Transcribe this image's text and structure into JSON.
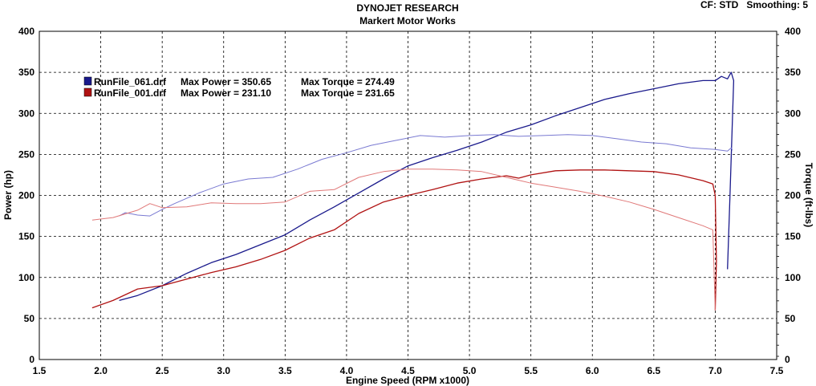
{
  "header": {
    "title": "DYNOJET RESEARCH",
    "subtitle": "Markert Motor Works",
    "settings": "CF: STD   Smoothing: 5"
  },
  "colors": {
    "blue_power": "#1a1a8c",
    "blue_torque": "#7a7ad2",
    "red_power": "#b01212",
    "red_torque": "#e07878"
  },
  "chart_data": {
    "type": "line",
    "xlabel": "Engine Speed (RPM x1000)",
    "ylabel_left": "Power (hp)",
    "ylabel_right": "Torque (ft-lbs)",
    "xlim": [
      1.5,
      7.5
    ],
    "ylim": [
      0,
      400
    ],
    "x_ticks": [
      "1.5",
      "2.0",
      "2.5",
      "3.0",
      "3.5",
      "4.0",
      "4.5",
      "5.0",
      "5.5",
      "6.0",
      "6.5",
      "7.0",
      "7.5"
    ],
    "y_ticks": [
      "0",
      "50",
      "100",
      "150",
      "200",
      "250",
      "300",
      "350",
      "400"
    ],
    "grid": true,
    "legend": [
      {
        "run": "RunFile_061.drf",
        "power": "Max Power = 350.65",
        "torque": "Max Torque = 274.49"
      },
      {
        "run": "RunFile_001.drf",
        "power": "Max Power = 231.10",
        "torque": "Max Torque = 231.65"
      }
    ],
    "series": [
      {
        "name": "RunFile_061.drf Power",
        "color": "#1a1a8c",
        "x": [
          2.15,
          2.3,
          2.5,
          2.7,
          2.9,
          3.1,
          3.3,
          3.5,
          3.7,
          3.9,
          4.1,
          4.3,
          4.5,
          4.7,
          4.9,
          5.1,
          5.3,
          5.5,
          5.7,
          5.9,
          6.1,
          6.3,
          6.5,
          6.7,
          6.9,
          7.0,
          7.05,
          7.1,
          7.13,
          7.15,
          7.12,
          7.1
        ],
        "y": [
          72,
          78,
          90,
          105,
          118,
          128,
          140,
          152,
          170,
          186,
          203,
          220,
          236,
          246,
          255,
          265,
          277,
          286,
          297,
          307,
          317,
          324,
          330,
          336,
          340,
          340,
          345,
          342,
          350,
          340,
          200,
          110
        ]
      },
      {
        "name": "RunFile_061.drf Torque",
        "color": "#7a7ad2",
        "x": [
          2.15,
          2.2,
          2.3,
          2.4,
          2.5,
          2.6,
          2.8,
          3.0,
          3.2,
          3.4,
          3.6,
          3.8,
          4.0,
          4.2,
          4.4,
          4.6,
          4.8,
          5.0,
          5.2,
          5.4,
          5.6,
          5.8,
          6.0,
          6.2,
          6.4,
          6.6,
          6.8,
          7.0,
          7.1,
          7.13,
          7.14
        ],
        "y": [
          175,
          179,
          176,
          175,
          183,
          190,
          203,
          214,
          220,
          222,
          232,
          244,
          252,
          261,
          267,
          273,
          271,
          273,
          274,
          272,
          273,
          274,
          273,
          269,
          265,
          263,
          258,
          256,
          254,
          258,
          255
        ]
      },
      {
        "name": "RunFile_001.drf Power",
        "color": "#b01212",
        "x": [
          1.93,
          2.1,
          2.3,
          2.5,
          2.7,
          2.9,
          3.1,
          3.3,
          3.5,
          3.7,
          3.9,
          4.1,
          4.3,
          4.5,
          4.7,
          4.9,
          5.1,
          5.3,
          5.4,
          5.5,
          5.7,
          5.9,
          6.1,
          6.3,
          6.5,
          6.7,
          6.9,
          6.98,
          7.0,
          7.01,
          7.0
        ],
        "y": [
          63,
          72,
          86,
          90,
          98,
          106,
          113,
          122,
          133,
          148,
          158,
          178,
          192,
          200,
          207,
          215,
          220,
          224,
          221,
          225,
          230,
          231,
          231,
          230,
          229,
          225,
          218,
          214,
          200,
          120,
          60
        ]
      },
      {
        "name": "RunFile_001.drf Torque",
        "color": "#e07878",
        "x": [
          1.93,
          2.1,
          2.3,
          2.4,
          2.5,
          2.7,
          2.9,
          3.1,
          3.3,
          3.5,
          3.7,
          3.9,
          4.1,
          4.3,
          4.5,
          4.7,
          4.9,
          5.1,
          5.3,
          5.5,
          5.7,
          5.9,
          6.1,
          6.3,
          6.5,
          6.7,
          6.9,
          6.98,
          7.0
        ],
        "y": [
          170,
          173,
          182,
          190,
          185,
          186,
          191,
          190,
          190,
          192,
          205,
          207,
          222,
          229,
          232,
          232,
          231,
          229,
          222,
          215,
          210,
          205,
          199,
          192,
          183,
          173,
          163,
          158,
          60
        ]
      }
    ]
  }
}
